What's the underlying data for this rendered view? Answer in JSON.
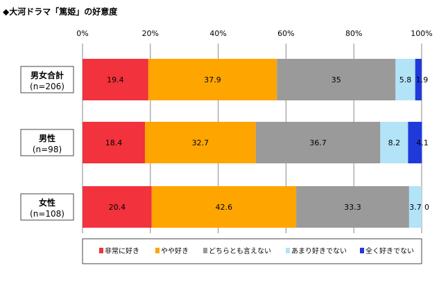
{
  "chart_data": {
    "type": "bar",
    "orientation": "horizontal-stacked-100",
    "title": "◆大河ドラマ「篤姫」の好意度",
    "x_ticks": [
      "0%",
      "20%",
      "40%",
      "60%",
      "80%",
      "100%"
    ],
    "xlim": [
      0,
      100
    ],
    "grid": true,
    "legend_position": "bottom",
    "categories": [
      {
        "name": "男女合計",
        "n": "(n=206)"
      },
      {
        "name": "男性",
        "n": "(n=98)"
      },
      {
        "name": "女性",
        "n": "(n=108)"
      }
    ],
    "series": [
      {
        "name": "非常に好き",
        "color": "#f2323c",
        "values": [
          19.4,
          18.4,
          20.4
        ]
      },
      {
        "name": "やや好き",
        "color": "#ffa500",
        "values": [
          37.9,
          32.7,
          42.6
        ]
      },
      {
        "name": "どちらとも言えない",
        "color": "#9a9a9a",
        "values": [
          35,
          36.7,
          33.3
        ]
      },
      {
        "name": "あまり好きでない",
        "color": "#b3e3f7",
        "values": [
          5.8,
          8.2,
          3.7
        ]
      },
      {
        "name": "全く好きでない",
        "color": "#1f3adb",
        "values": [
          1.9,
          4.1,
          0
        ]
      }
    ]
  }
}
